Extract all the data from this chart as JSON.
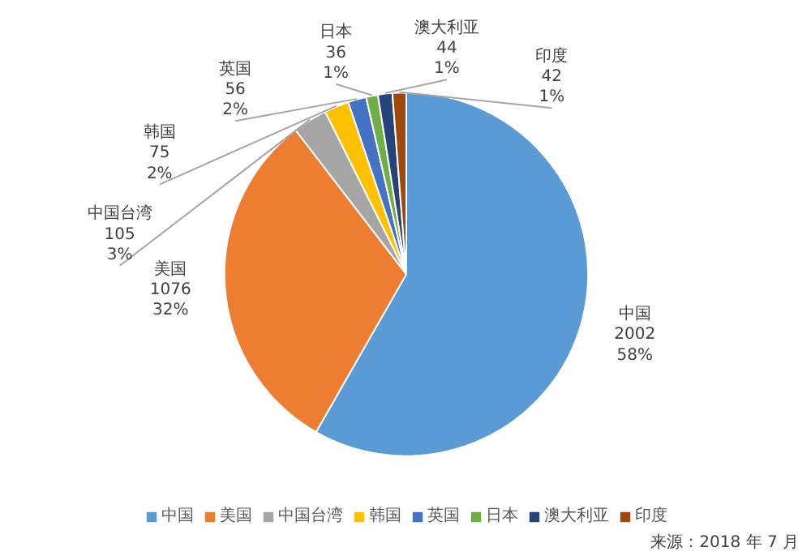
{
  "chart_data": {
    "type": "pie",
    "categories": [
      "中国",
      "美国",
      "中国台湾",
      "韩国",
      "英国",
      "日本",
      "澳大利亚",
      "印度"
    ],
    "values": [
      2002,
      1076,
      105,
      75,
      56,
      36,
      44,
      42
    ],
    "colors": [
      "#5b9bd5",
      "#ed7d31",
      "#a5a5a5",
      "#ffc000",
      "#4472c4",
      "#70ad47",
      "#264478",
      "#9e480e"
    ],
    "value_labels": [
      "2002\n58%",
      "1076\n32%",
      "105\n3%",
      "75\n2%",
      "56\n2%",
      "36\n1%",
      "44\n1%",
      "42\n1%"
    ],
    "legend": "bottom",
    "annotations": [
      "来源：2018 年 7 月"
    ]
  }
}
